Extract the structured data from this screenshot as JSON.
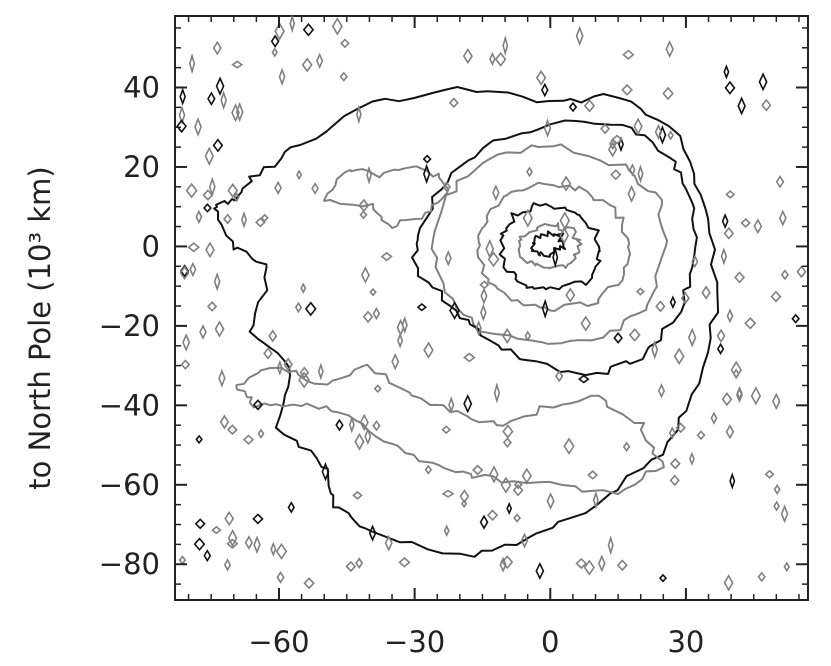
{
  "chart_data": {
    "type": "contour",
    "ylabel": "to North Pole (10³ km)",
    "xlabel": "",
    "xlim": [
      -83,
      57
    ],
    "ylim": [
      -89,
      58
    ],
    "x_ticks": [
      -60,
      -30,
      0,
      30
    ],
    "x_tick_labels": [
      "−60",
      "−30",
      "0",
      "30"
    ],
    "y_ticks": [
      40,
      20,
      0,
      -20,
      -40,
      -60,
      -80
    ],
    "y_tick_labels": [
      "40",
      "20",
      "0",
      "−20",
      "−40",
      "−60",
      "−80"
    ],
    "grid": false,
    "colors": {
      "black_contour": "#111111",
      "gray_contour": "#808080",
      "axis": "#222222"
    },
    "contours": [
      {
        "name": "",
        "color": "black",
        "points": [
          [
            0,
            -2
          ],
          [
            3,
            0
          ],
          [
            2,
            3
          ],
          [
            -1,
            3
          ],
          [
            -4,
            1
          ],
          [
            -3,
            -2
          ],
          [
            0,
            -2
          ]
        ]
      },
      {
        "name": "",
        "color": "gray",
        "points": [
          [
            0,
            -6
          ],
          [
            5,
            -4
          ],
          [
            7,
            0
          ],
          [
            5,
            4
          ],
          [
            0,
            6
          ],
          [
            -5,
            4
          ],
          [
            -7,
            0
          ],
          [
            -5,
            -4
          ],
          [
            0,
            -6
          ]
        ]
      },
      {
        "name": "",
        "color": "black",
        "points": [
          [
            0,
            -11
          ],
          [
            8,
            -9
          ],
          [
            11,
            -3
          ],
          [
            10,
            4
          ],
          [
            5,
            9
          ],
          [
            -2,
            11
          ],
          [
            -8,
            8
          ],
          [
            -11,
            2
          ],
          [
            -10,
            -5
          ],
          [
            -6,
            -10
          ],
          [
            0,
            -11
          ]
        ]
      },
      {
        "name": "",
        "color": "gray",
        "points": [
          [
            0,
            -16
          ],
          [
            10,
            -14
          ],
          [
            16,
            -8
          ],
          [
            18,
            0
          ],
          [
            15,
            8
          ],
          [
            8,
            14
          ],
          [
            0,
            16
          ],
          [
            -8,
            14
          ],
          [
            -14,
            8
          ],
          [
            -16,
            0
          ],
          [
            -14,
            -8
          ],
          [
            -8,
            -14
          ],
          [
            0,
            -16
          ]
        ]
      },
      {
        "name": "",
        "color": "gray",
        "points": [
          [
            0,
            -25
          ],
          [
            14,
            -22
          ],
          [
            22,
            -14
          ],
          [
            26,
            0
          ],
          [
            24,
            12
          ],
          [
            16,
            20
          ],
          [
            0,
            26
          ],
          [
            -14,
            22
          ],
          [
            -23,
            13
          ],
          [
            -26,
            0
          ],
          [
            -22,
            -14
          ],
          [
            -14,
            -22
          ],
          [
            0,
            -25
          ]
        ]
      },
      {
        "name": "",
        "color": "black",
        "points": [
          [
            8,
            -33
          ],
          [
            20,
            -28
          ],
          [
            28,
            -18
          ],
          [
            32,
            -5
          ],
          [
            32,
            10
          ],
          [
            27,
            22
          ],
          [
            18,
            30
          ],
          [
            3,
            31
          ],
          [
            -12,
            27
          ],
          [
            -22,
            19
          ],
          [
            -29,
            5
          ],
          [
            -30,
            -5
          ],
          [
            -22,
            -15
          ],
          [
            -15,
            -22
          ],
          [
            -5,
            -29
          ],
          [
            8,
            -33
          ]
        ]
      },
      {
        "name": "",
        "color": "black",
        "points": [
          [
            -40,
            -72
          ],
          [
            -20,
            -78
          ],
          [
            -5,
            -74
          ],
          [
            10,
            -65
          ],
          [
            25,
            -52
          ],
          [
            33,
            -35
          ],
          [
            37,
            -12
          ],
          [
            35,
            10
          ],
          [
            28,
            28
          ],
          [
            15,
            38
          ],
          [
            0,
            36
          ],
          [
            -20,
            40
          ],
          [
            -40,
            36
          ],
          [
            -55,
            26
          ],
          [
            -65,
            18
          ],
          [
            -70,
            12
          ],
          [
            -75,
            10
          ],
          [
            -70,
            0
          ],
          [
            -62,
            -5
          ],
          [
            -66,
            -22
          ],
          [
            -58,
            -30
          ],
          [
            -60,
            -45
          ],
          [
            -50,
            -55
          ],
          [
            -48,
            -65
          ],
          [
            -40,
            -72
          ]
        ]
      },
      {
        "name": "",
        "color": "gray",
        "points": [
          [
            -70,
            -35
          ],
          [
            -60,
            -30
          ],
          [
            -50,
            -35
          ],
          [
            -40,
            -30
          ],
          [
            -30,
            -38
          ],
          [
            -20,
            -42
          ],
          [
            -10,
            -45
          ],
          [
            0,
            -40
          ],
          [
            10,
            -38
          ],
          [
            20,
            -45
          ],
          [
            25,
            -55
          ],
          [
            15,
            -62
          ],
          [
            0,
            -60
          ],
          [
            -15,
            -58
          ],
          [
            -25,
            -55
          ],
          [
            -35,
            -50
          ],
          [
            -45,
            -42
          ],
          [
            -55,
            -40
          ],
          [
            -65,
            -40
          ],
          [
            -70,
            -35
          ]
        ]
      },
      {
        "name": "",
        "color": "gray",
        "points": [
          [
            -50,
            12
          ],
          [
            -40,
            10
          ],
          [
            -35,
            5
          ],
          [
            -28,
            8
          ],
          [
            -22,
            15
          ],
          [
            -28,
            20
          ],
          [
            -38,
            18
          ],
          [
            -45,
            20
          ],
          [
            -50,
            12
          ]
        ]
      }
    ]
  }
}
